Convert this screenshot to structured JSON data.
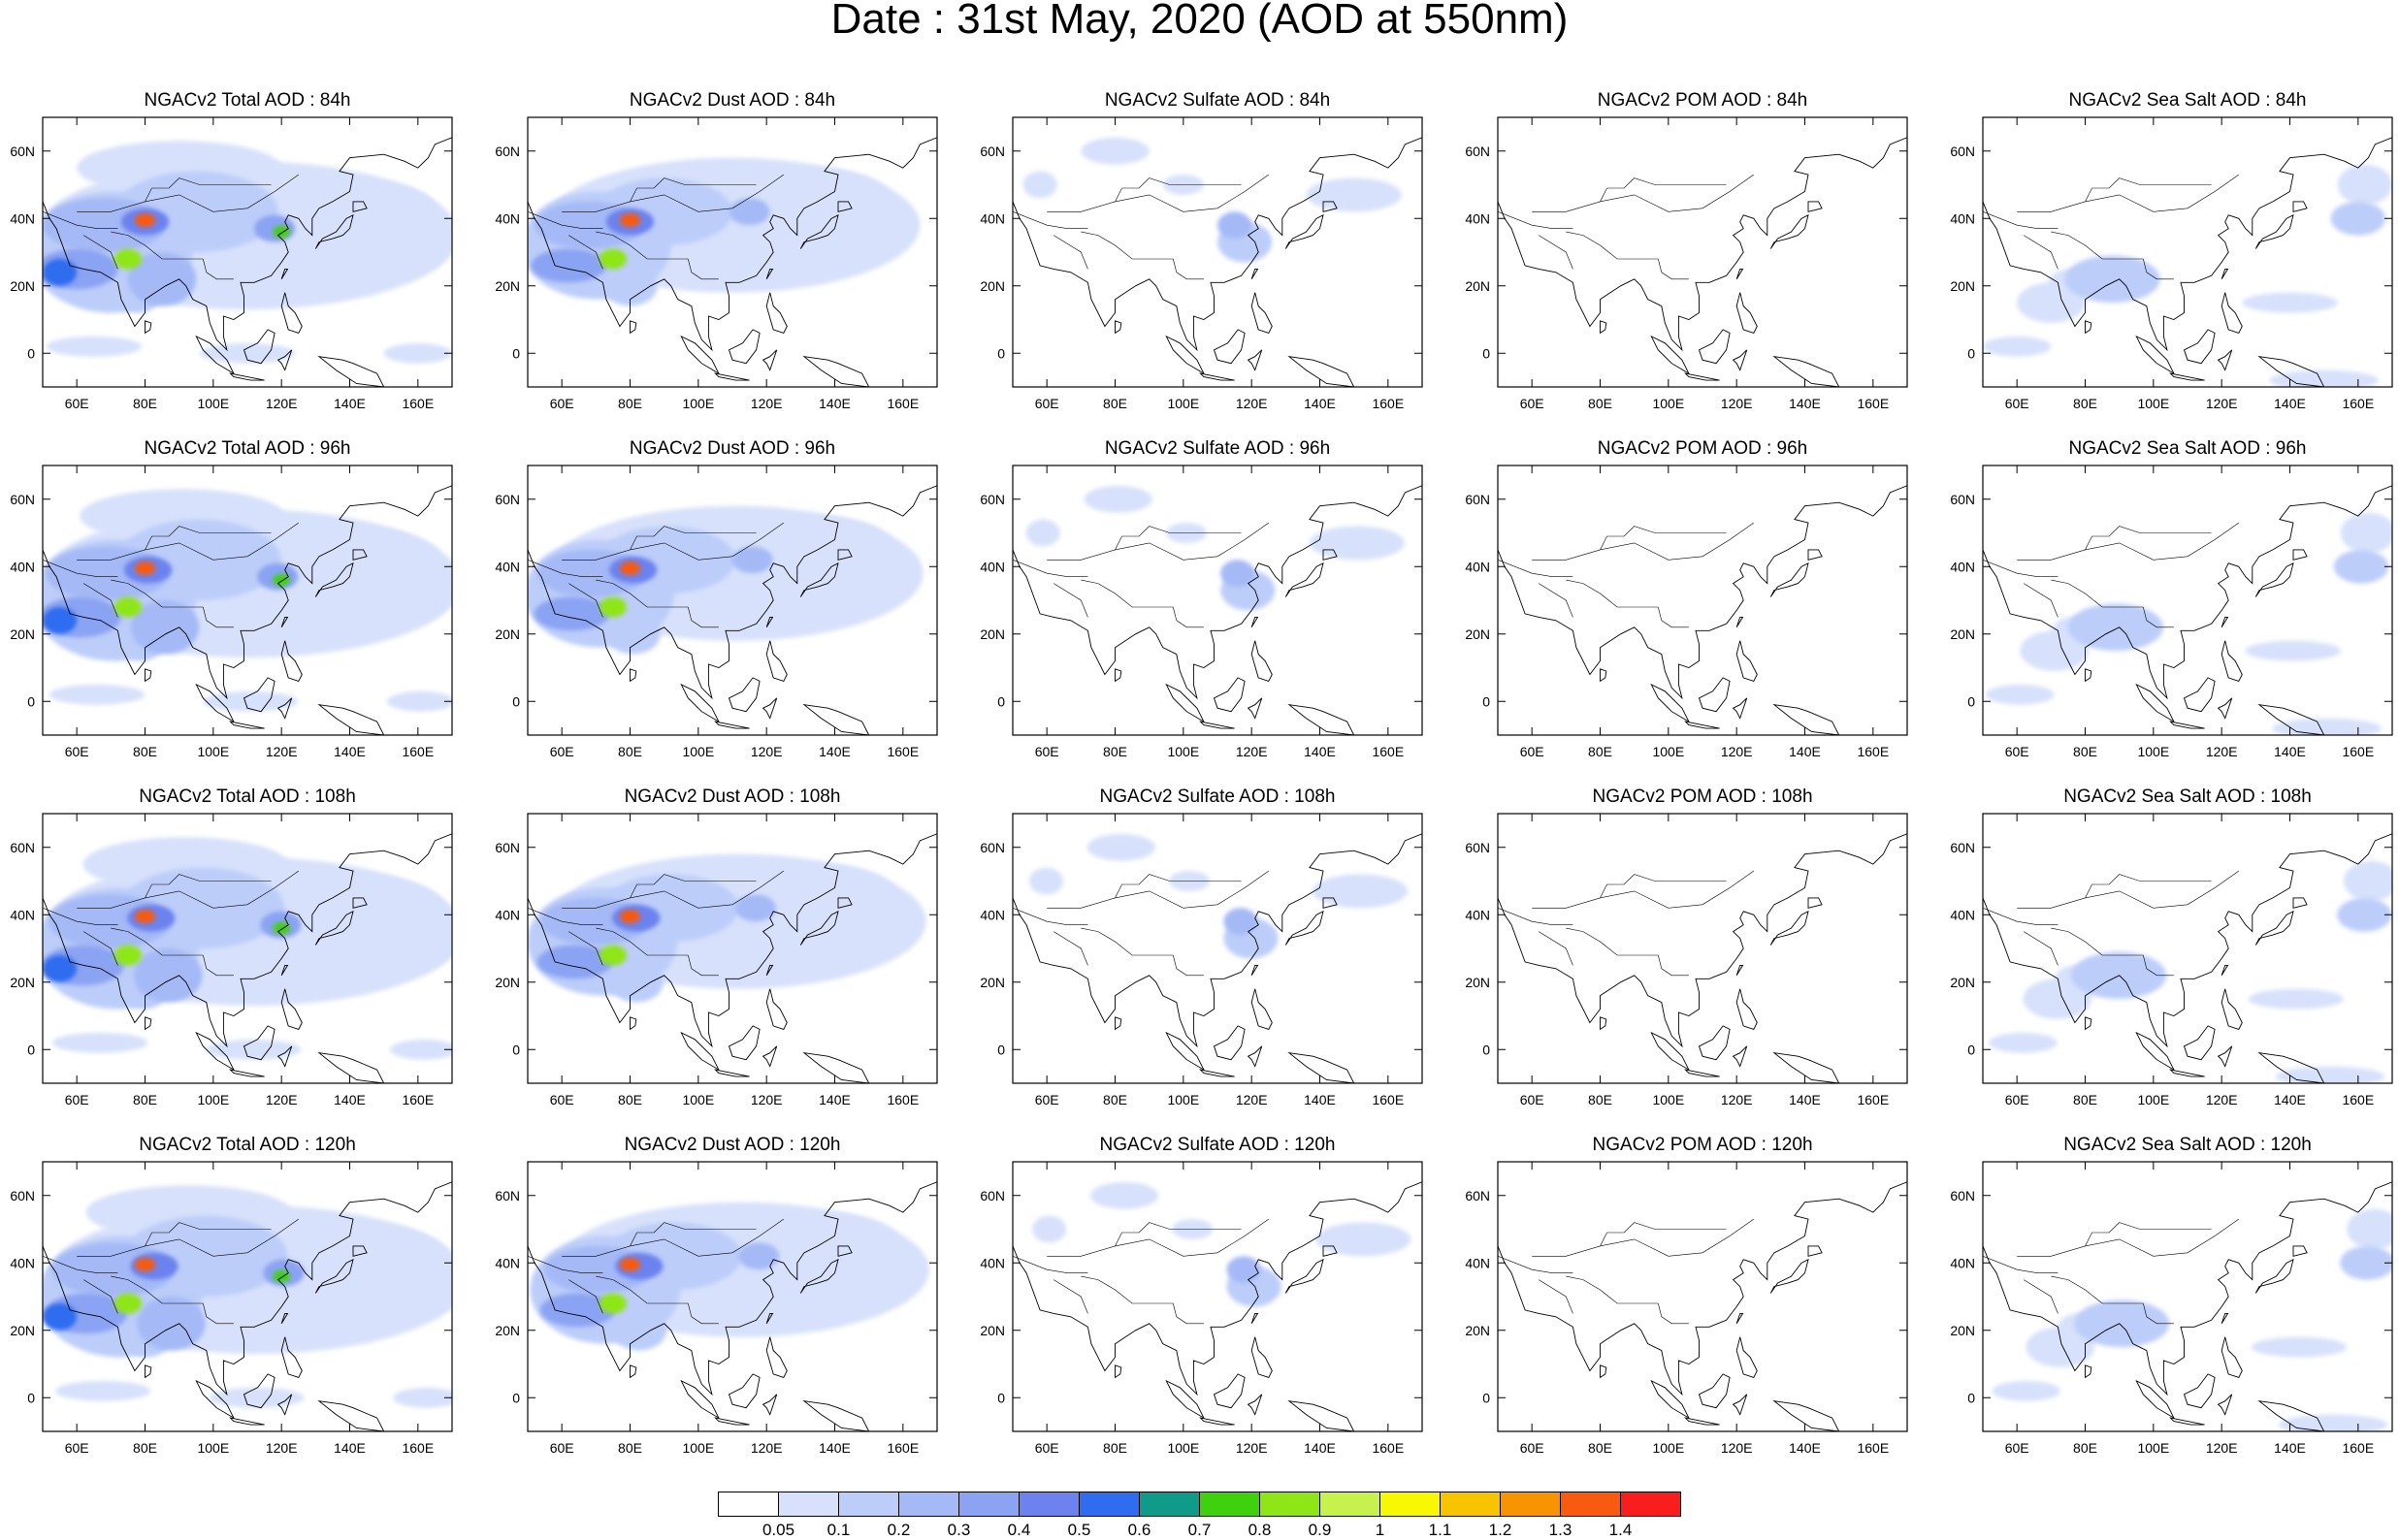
{
  "title": "Date : 31st May, 2020 (AOD at 550nm)",
  "rows": [
    {
      "panels": [
        {
          "title": "NGACv2 Total AOD : 84h",
          "field": "total"
        },
        {
          "title": "NGACv2 Dust AOD : 84h",
          "field": "dust"
        },
        {
          "title": "NGACv2 Sulfate AOD : 84h",
          "field": "sulfate"
        },
        {
          "title": "NGACv2 POM AOD : 84h",
          "field": "pom"
        },
        {
          "title": "NGACv2 Sea Salt AOD : 84h",
          "field": "seasalt"
        }
      ]
    },
    {
      "panels": [
        {
          "title": "NGACv2 Total AOD : 96h",
          "field": "total"
        },
        {
          "title": "NGACv2 Dust AOD : 96h",
          "field": "dust"
        },
        {
          "title": "NGACv2 Sulfate AOD : 96h",
          "field": "sulfate"
        },
        {
          "title": "NGACv2 POM AOD : 96h",
          "field": "pom"
        },
        {
          "title": "NGACv2 Sea Salt AOD : 96h",
          "field": "seasalt"
        }
      ]
    },
    {
      "panels": [
        {
          "title": "NGACv2 Total AOD : 108h",
          "field": "total"
        },
        {
          "title": "NGACv2 Dust AOD : 108h",
          "field": "dust"
        },
        {
          "title": "NGACv2 Sulfate AOD : 108h",
          "field": "sulfate"
        },
        {
          "title": "NGACv2 POM AOD : 108h",
          "field": "pom"
        },
        {
          "title": "NGACv2 Sea Salt AOD : 108h",
          "field": "seasalt"
        }
      ]
    },
    {
      "panels": [
        {
          "title": "NGACv2 Total AOD : 120h",
          "field": "total"
        },
        {
          "title": "NGACv2 Dust AOD : 120h",
          "field": "dust"
        },
        {
          "title": "NGACv2 Sulfate AOD : 120h",
          "field": "sulfate"
        },
        {
          "title": "NGACv2 POM AOD : 120h",
          "field": "pom"
        },
        {
          "title": "NGACv2 Sea Salt  AOD : 120h",
          "field": "seasalt"
        }
      ]
    }
  ],
  "map": {
    "lon_range": [
      50,
      170
    ],
    "lat_range": [
      -10,
      70
    ],
    "x_ticks": [
      "60E",
      "80E",
      "100E",
      "120E",
      "140E",
      "160E"
    ],
    "y_ticks": [
      "60N",
      "40N",
      "20N",
      "0"
    ]
  },
  "colorbar": {
    "labels": [
      "0.05",
      "0.1",
      "0.2",
      "0.3",
      "0.4",
      "0.5",
      "0.6",
      "0.7",
      "0.8",
      "0.9",
      "1",
      "1.1",
      "1.2",
      "1.3",
      "1.4"
    ],
    "colors": [
      "#ffffff",
      "#d7e1fb",
      "#bccdf9",
      "#a4b9f6",
      "#8ba3f3",
      "#6c82ee",
      "#2f6cf0",
      "#0f9a8a",
      "#3fd00e",
      "#8ee617",
      "#c7f24e",
      "#f8f800",
      "#f8c400",
      "#f89400",
      "#f85a10",
      "#f81e1e"
    ]
  }
}
